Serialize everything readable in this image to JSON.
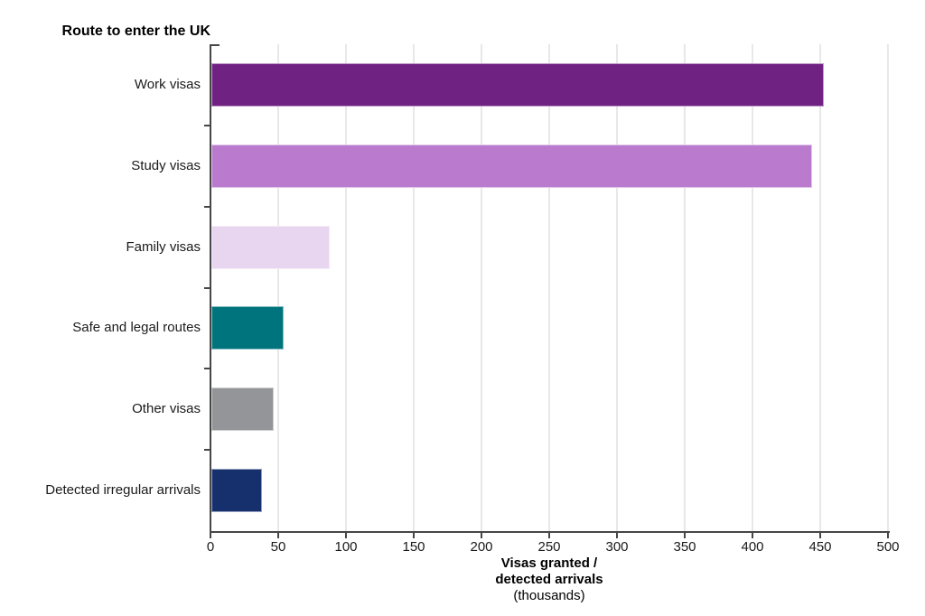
{
  "chart_data": {
    "type": "bar",
    "orientation": "horizontal",
    "title": "Route to enter the UK",
    "categories": [
      "Work visas",
      "Study visas",
      "Family visas",
      "Safe and legal routes",
      "Other visas",
      "Detected irregular arrivals"
    ],
    "values": [
      452,
      443,
      87,
      53,
      46,
      37
    ],
    "bar_colors": [
      "#702283",
      "#BA7BCE",
      "#E8D5F0",
      "#00747C",
      "#939598",
      "#16306E"
    ],
    "xlabel_line1": "Visas granted /",
    "xlabel_line2": "detected arrivals",
    "xlabel_line3": "(thousands)",
    "xlim": [
      0,
      500
    ],
    "xticks": [
      0,
      50,
      100,
      150,
      200,
      250,
      300,
      350,
      400,
      450,
      500
    ],
    "grid": "vertical gridlines at 50-unit intervals",
    "legend": "none"
  },
  "style": {
    "axis_color": "#464646",
    "grid_color": "#e8e8e8",
    "text_color": "#1a1a1a",
    "background": "#ffffff"
  }
}
